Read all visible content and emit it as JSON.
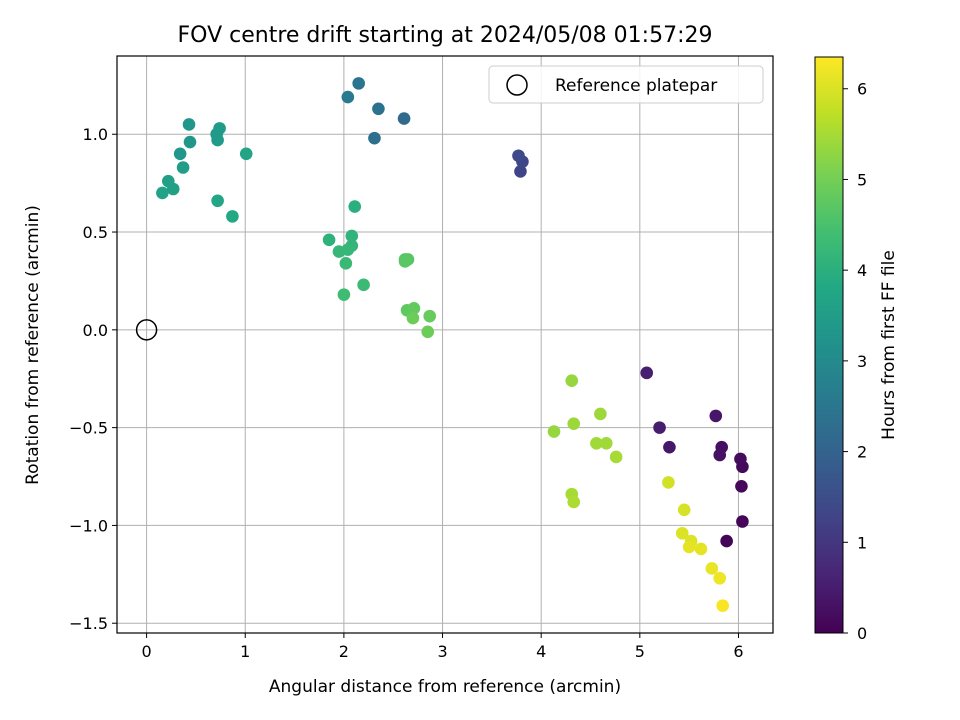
{
  "chart_data": {
    "type": "scatter",
    "title": "FOV centre drift starting at 2024/05/08 01:57:29",
    "xlabel": "Angular distance from reference (arcmin)",
    "ylabel": "Rotation from reference (arcmin)",
    "xlim": [
      -0.3,
      6.35
    ],
    "ylim": [
      -1.55,
      1.4
    ],
    "x_ticks": [
      0,
      1,
      2,
      3,
      4,
      5,
      6
    ],
    "x_tick_labels": [
      "0",
      "1",
      "2",
      "3",
      "4",
      "5",
      "6"
    ],
    "y_ticks": [
      -1.5,
      -1.0,
      -0.5,
      0.0,
      0.5,
      1.0
    ],
    "y_tick_labels": [
      "−1.5",
      "−1.0",
      "−0.5",
      "0.0",
      "0.5",
      "1.0"
    ],
    "grid": true,
    "legend": {
      "placement": "top-right",
      "entries": [
        "Reference platepar"
      ]
    },
    "reference_point": {
      "x": 0.0,
      "y": 0.0,
      "marker": "open-circle"
    },
    "colorbar": {
      "label": "Hours from first FF file",
      "range": [
        0,
        6.35
      ],
      "ticks": [
        0,
        1,
        2,
        3,
        4,
        5,
        6
      ],
      "tick_labels": [
        "0",
        "1",
        "2",
        "3",
        "4",
        "5",
        "6"
      ],
      "colormap": "viridis"
    },
    "points": [
      {
        "x": 5.88,
        "y": -1.08,
        "c": 0.05
      },
      {
        "x": 6.04,
        "y": -0.98,
        "c": 0.08
      },
      {
        "x": 6.03,
        "y": -0.8,
        "c": 0.12
      },
      {
        "x": 6.04,
        "y": -0.7,
        "c": 0.15
      },
      {
        "x": 6.02,
        "y": -0.66,
        "c": 0.18
      },
      {
        "x": 5.83,
        "y": -0.6,
        "c": 0.25
      },
      {
        "x": 5.81,
        "y": -0.64,
        "c": 0.3
      },
      {
        "x": 5.77,
        "y": -0.44,
        "c": 0.38
      },
      {
        "x": 5.3,
        "y": -0.6,
        "c": 0.42
      },
      {
        "x": 5.2,
        "y": -0.5,
        "c": 0.5
      },
      {
        "x": 5.07,
        "y": -0.22,
        "c": 0.55
      },
      {
        "x": 3.79,
        "y": 0.81,
        "c": 1.3
      },
      {
        "x": 3.81,
        "y": 0.86,
        "c": 1.35
      },
      {
        "x": 3.77,
        "y": 0.89,
        "c": 1.4
      },
      {
        "x": 2.61,
        "y": 1.08,
        "c": 2.2
      },
      {
        "x": 2.31,
        "y": 0.98,
        "c": 2.3
      },
      {
        "x": 2.35,
        "y": 1.13,
        "c": 2.4
      },
      {
        "x": 2.15,
        "y": 1.26,
        "c": 2.5
      },
      {
        "x": 2.04,
        "y": 1.19,
        "c": 2.6
      },
      {
        "x": 0.34,
        "y": 0.9,
        "c": 3.3
      },
      {
        "x": 0.43,
        "y": 1.05,
        "c": 3.3
      },
      {
        "x": 0.44,
        "y": 0.96,
        "c": 3.35
      },
      {
        "x": 0.71,
        "y": 1.0,
        "c": 3.4
      },
      {
        "x": 0.74,
        "y": 1.03,
        "c": 3.45
      },
      {
        "x": 0.72,
        "y": 0.97,
        "c": 3.45
      },
      {
        "x": 0.37,
        "y": 0.83,
        "c": 3.5
      },
      {
        "x": 0.22,
        "y": 0.76,
        "c": 3.55
      },
      {
        "x": 0.27,
        "y": 0.72,
        "c": 3.6
      },
      {
        "x": 0.16,
        "y": 0.7,
        "c": 3.65
      },
      {
        "x": 1.01,
        "y": 0.9,
        "c": 3.7
      },
      {
        "x": 0.72,
        "y": 0.66,
        "c": 3.75
      },
      {
        "x": 0.87,
        "y": 0.58,
        "c": 3.8
      },
      {
        "x": 2.11,
        "y": 0.63,
        "c": 4.0
      },
      {
        "x": 1.85,
        "y": 0.46,
        "c": 4.05
      },
      {
        "x": 2.08,
        "y": 0.48,
        "c": 4.1
      },
      {
        "x": 2.08,
        "y": 0.43,
        "c": 4.15
      },
      {
        "x": 1.95,
        "y": 0.4,
        "c": 4.2
      },
      {
        "x": 2.04,
        "y": 0.41,
        "c": 4.2
      },
      {
        "x": 2.02,
        "y": 0.34,
        "c": 4.25
      },
      {
        "x": 2.2,
        "y": 0.23,
        "c": 4.3
      },
      {
        "x": 2.0,
        "y": 0.18,
        "c": 4.35
      },
      {
        "x": 2.62,
        "y": 0.36,
        "c": 4.6
      },
      {
        "x": 2.65,
        "y": 0.36,
        "c": 4.65
      },
      {
        "x": 2.62,
        "y": 0.35,
        "c": 4.7
      },
      {
        "x": 2.64,
        "y": 0.1,
        "c": 4.75
      },
      {
        "x": 2.71,
        "y": 0.11,
        "c": 4.8
      },
      {
        "x": 2.87,
        "y": 0.07,
        "c": 4.85
      },
      {
        "x": 2.7,
        "y": 0.06,
        "c": 4.9
      },
      {
        "x": 2.85,
        "y": -0.01,
        "c": 4.9
      },
      {
        "x": 4.31,
        "y": -0.26,
        "c": 5.35
      },
      {
        "x": 4.13,
        "y": -0.52,
        "c": 5.35
      },
      {
        "x": 4.33,
        "y": -0.48,
        "c": 5.4
      },
      {
        "x": 4.6,
        "y": -0.43,
        "c": 5.4
      },
      {
        "x": 4.56,
        "y": -0.58,
        "c": 5.45
      },
      {
        "x": 4.66,
        "y": -0.58,
        "c": 5.45
      },
      {
        "x": 4.76,
        "y": -0.65,
        "c": 5.5
      },
      {
        "x": 4.31,
        "y": -0.84,
        "c": 5.5
      },
      {
        "x": 4.33,
        "y": -0.88,
        "c": 5.55
      },
      {
        "x": 5.29,
        "y": -0.78,
        "c": 5.9
      },
      {
        "x": 5.45,
        "y": -0.92,
        "c": 5.95
      },
      {
        "x": 5.43,
        "y": -1.04,
        "c": 6.0
      },
      {
        "x": 5.52,
        "y": -1.08,
        "c": 6.05
      },
      {
        "x": 5.5,
        "y": -1.11,
        "c": 6.1
      },
      {
        "x": 5.62,
        "y": -1.12,
        "c": 6.1
      },
      {
        "x": 5.73,
        "y": -1.22,
        "c": 6.15
      },
      {
        "x": 5.81,
        "y": -1.27,
        "c": 6.2
      },
      {
        "x": 5.84,
        "y": -1.41,
        "c": 6.3
      }
    ]
  }
}
